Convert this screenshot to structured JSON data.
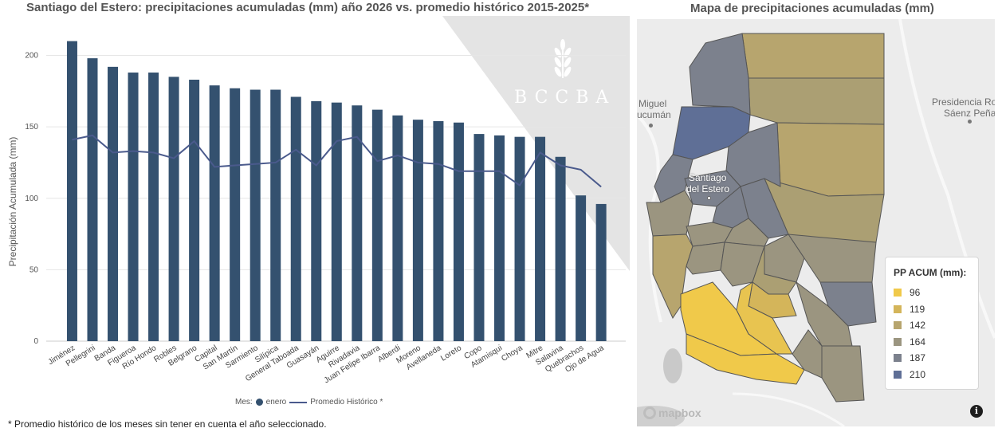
{
  "chart_title": "Santiago del Estero: precipitaciones acumuladas (mm) año 2026 vs. promedio histórico 2015-2025*",
  "map_title": "Mapa de precipitaciones acumuladas (mm)",
  "watermark": "BCCBA",
  "chart_data": {
    "type": "bar",
    "title": "Santiago del Estero: precipitaciones acumuladas (mm) año 2026 vs. promedio histórico 2015-2025*",
    "xlabel": "",
    "ylabel": "Precipitación Acumulada (mm)",
    "ylim": [
      0,
      212
    ],
    "yticks": [
      0,
      50,
      100,
      150,
      200
    ],
    "categories": [
      "Jiménez",
      "Pellegrini",
      "Banda",
      "Figueroa",
      "Río Hondo",
      "Robles",
      "Belgrano",
      "Capital",
      "San Martín",
      "Sarmiento",
      "Silípica",
      "General Taboada",
      "Guasayán",
      "Aguirre",
      "Rivadavia",
      "Juan Felipe Ibarra",
      "Alberdi",
      "Moreno",
      "Avellaneda",
      "Loreto",
      "Copo",
      "Atamisqui",
      "Choya",
      "Mitre",
      "Salavina",
      "Quebrachos",
      "Ojo de Agua"
    ],
    "series": [
      {
        "name": "enero",
        "type": "bar",
        "color": "#34516f",
        "values": [
          210,
          198,
          192,
          188,
          188,
          185,
          183,
          179,
          177,
          176,
          176,
          171,
          168,
          167,
          165,
          162,
          158,
          155,
          154,
          153,
          145,
          144,
          143,
          143,
          129,
          102,
          96
        ]
      },
      {
        "name": "Promedio Histórico *",
        "type": "line",
        "color": "#4a5a8c",
        "values": [
          141,
          144,
          132,
          133,
          132,
          128,
          140,
          122,
          123,
          124,
          125,
          134,
          123,
          140,
          143,
          126,
          130,
          125,
          124,
          119,
          119,
          119,
          109,
          132,
          123,
          120,
          108
        ]
      }
    ],
    "legend_title": "Mes:",
    "legend_position": "bottom"
  },
  "legend": {
    "title": "Mes:",
    "bar_label": "enero",
    "line_label": "Promedio Histórico *"
  },
  "footnote": "* Promedio histórico de los meses sin tener en cuenta el año seleccionado.",
  "map": {
    "labels": {
      "miguel": "Miguel",
      "tucuman": "ucumán",
      "santiago1": "Santiago",
      "santiago2": "del Estero",
      "presidencia": "Presidencia Ro",
      "saenz": "Sáenz Peña"
    },
    "attribution": "mapbox",
    "info_symbol": "i",
    "legend_title": "PP ACUM (mm):",
    "legend_items": [
      {
        "label": "96",
        "color": "#f0c94a"
      },
      {
        "label": "119",
        "color": "#d4b55a"
      },
      {
        "label": "142",
        "color": "#b7a56e"
      },
      {
        "label": "164",
        "color": "#9b9580"
      },
      {
        "label": "187",
        "color": "#7c818d"
      },
      {
        "label": "210",
        "color": "#5f6f96"
      }
    ]
  }
}
